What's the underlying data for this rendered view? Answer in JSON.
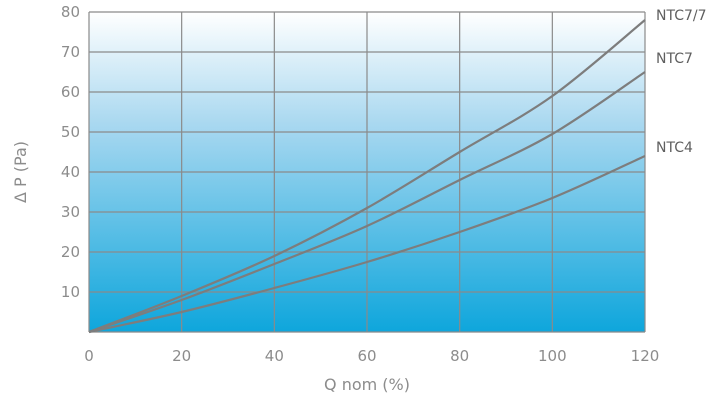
{
  "chart_data": {
    "type": "line",
    "xlabel": "Q nom (%)",
    "ylabel": "Δ P (Pa)",
    "xlim": [
      0,
      120
    ],
    "ylim": [
      0,
      80
    ],
    "x_ticks": [
      "0",
      "20",
      "40",
      "60",
      "80",
      "100",
      "120"
    ],
    "y_ticks": [
      "10",
      "20",
      "30",
      "40",
      "50",
      "60",
      "70",
      "80"
    ],
    "grid": true,
    "background": "blue vertical gradient",
    "series": [
      {
        "name": "NTC7/7",
        "x": [
          0,
          20,
          40,
          60,
          80,
          100,
          120
        ],
        "y": [
          0,
          9,
          19,
          31,
          45,
          59,
          78
        ]
      },
      {
        "name": "NTC7",
        "x": [
          0,
          20,
          40,
          60,
          80,
          100,
          120
        ],
        "y": [
          0,
          8,
          17,
          26.5,
          38,
          49.5,
          65
        ]
      },
      {
        "name": "NTC4",
        "x": [
          0,
          20,
          40,
          60,
          80,
          100,
          120
        ],
        "y": [
          0,
          5,
          11,
          17.5,
          25,
          33.5,
          44
        ]
      }
    ]
  },
  "colors": {
    "gradient_top": "#ffffff",
    "gradient_bottom": "#0ea6dc",
    "grid": "#8a8a8a",
    "series_line": "#7d7d7d",
    "tick_text": "#8c8c8c"
  }
}
